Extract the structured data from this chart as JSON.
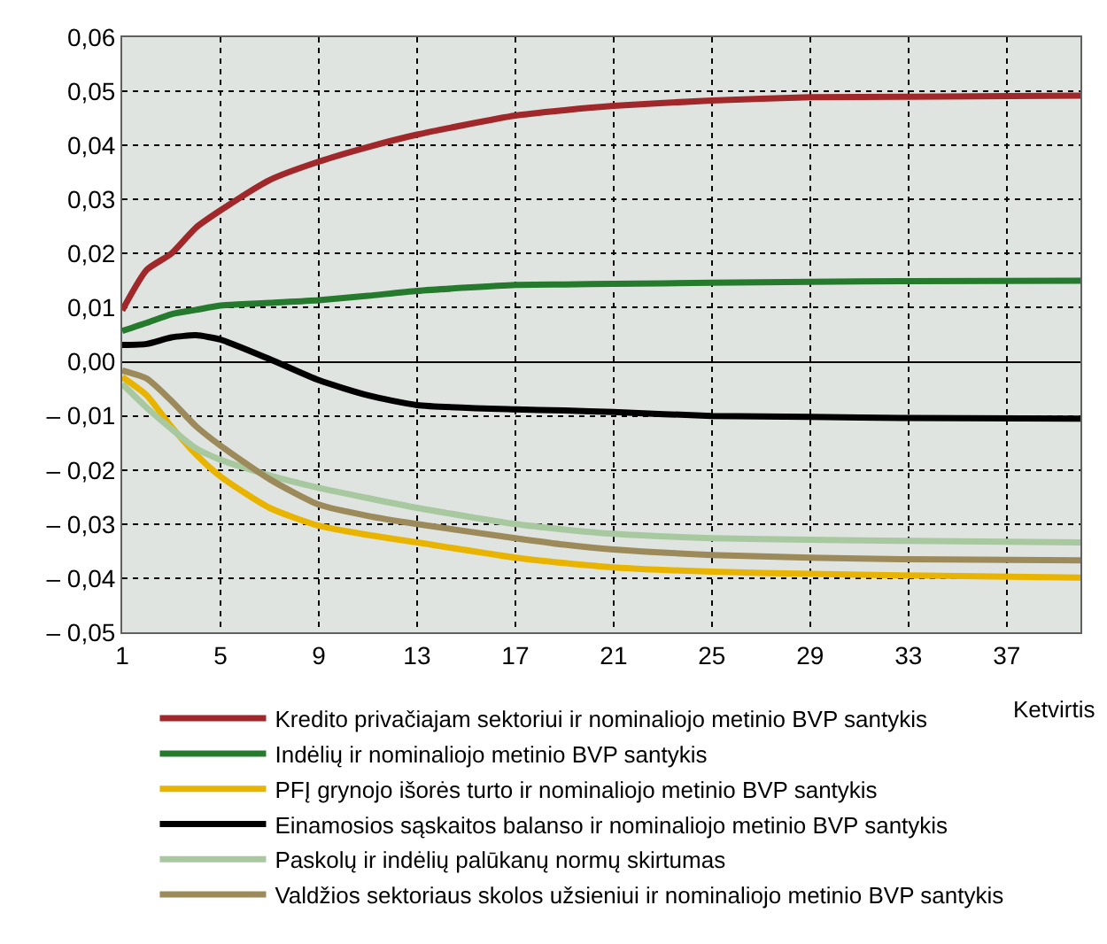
{
  "chart_data": {
    "type": "line",
    "xlabel": "Ketvirtis",
    "x": [
      1,
      2,
      3,
      4,
      5,
      7,
      9,
      11,
      13,
      17,
      19,
      21,
      25,
      29,
      33,
      40
    ],
    "series": [
      {
        "name": "Kredito privačiajam sektoriui ir nominaliojo metinio BVP santykis",
        "color": "#a0282a",
        "values": [
          0.0095,
          0.017,
          0.02,
          0.0248,
          0.028,
          0.0336,
          0.037,
          0.0397,
          0.042,
          0.0455,
          0.0465,
          0.0473,
          0.0483,
          0.0489,
          0.049,
          0.0492
        ]
      },
      {
        "name": "Indėlių ir nominaliojo metinio BVP santykis",
        "color": "#267a2e",
        "values": [
          0.0057,
          0.0072,
          0.0088,
          0.0096,
          0.0104,
          0.0109,
          0.0114,
          0.0122,
          0.0131,
          0.0142,
          0.0143,
          0.0144,
          0.0146,
          0.0148,
          0.0149,
          0.015
        ]
      },
      {
        "name": "PFĮ grynojo išorės turto ir nominaliojo metinio BVP santykis",
        "color": "#e8b400",
        "values": [
          -0.0028,
          -0.0062,
          -0.012,
          -0.0171,
          -0.0212,
          -0.027,
          -0.0303,
          -0.032,
          -0.0334,
          -0.0362,
          -0.0372,
          -0.038,
          -0.0388,
          -0.0392,
          -0.0395,
          -0.0399
        ]
      },
      {
        "name": "Einamosios sąskaitos balanso ir nominaliojo metinio BVP santykis",
        "color": "#000000",
        "values": [
          0.0031,
          0.0033,
          0.0045,
          0.0049,
          0.0041,
          0.0005,
          -0.0034,
          -0.0062,
          -0.008,
          -0.0088,
          -0.009,
          -0.0093,
          -0.01,
          -0.0102,
          -0.0104,
          -0.0105
        ]
      },
      {
        "name": "Paskolų ir indėlių palūkanų normų skirtumas",
        "color": "#a8c8a0",
        "values": [
          -0.0041,
          -0.0085,
          -0.0124,
          -0.016,
          -0.0181,
          -0.021,
          -0.0233,
          -0.0252,
          -0.027,
          -0.03,
          -0.031,
          -0.0318,
          -0.0326,
          -0.0329,
          -0.0331,
          -0.0334
        ]
      },
      {
        "name": "Valdžios sektoriaus skolos užsieniui ir nominaliojo metinio BVP santykis",
        "color": "#9c8a5a",
        "values": [
          -0.0016,
          -0.0031,
          -0.0072,
          -0.0119,
          -0.0155,
          -0.0217,
          -0.0264,
          -0.0285,
          -0.03,
          -0.0326,
          -0.0338,
          -0.0347,
          -0.0357,
          -0.0362,
          -0.0365,
          -0.0367
        ]
      }
    ],
    "xlim": [
      1,
      40
    ],
    "xticks": [
      1,
      5,
      9,
      13,
      17,
      21,
      25,
      29,
      33,
      37
    ],
    "ylim": [
      -0.05,
      0.06
    ],
    "yticks": [
      {
        "value": -0.05,
        "label": "– 0,05"
      },
      {
        "value": -0.04,
        "label": "– 0,04"
      },
      {
        "value": -0.03,
        "label": "– 0,03"
      },
      {
        "value": -0.02,
        "label": "– 0,02"
      },
      {
        "value": -0.01,
        "label": "– 0,01"
      },
      {
        "value": 0,
        "label": "0,00"
      },
      {
        "value": 0.01,
        "label": "0,01"
      },
      {
        "value": 0.02,
        "label": "0,02"
      },
      {
        "value": 0.03,
        "label": "0,03"
      },
      {
        "value": 0.04,
        "label": "0,04"
      },
      {
        "value": 0.05,
        "label": "0,05"
      },
      {
        "value": 0.06,
        "label": "0,06"
      }
    ],
    "grid": true,
    "legend": "bottom",
    "marker": "none",
    "line_style": "solid"
  }
}
